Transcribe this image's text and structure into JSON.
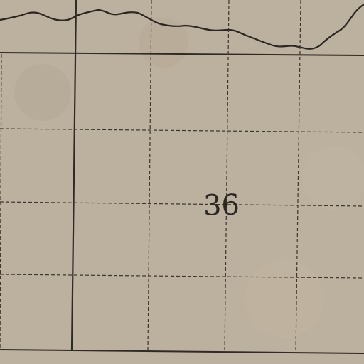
{
  "map": {
    "section_number": "36",
    "colors": {
      "paper": "#bcb09e",
      "ink": "#2a2622",
      "grid": "#3a3530"
    }
  }
}
